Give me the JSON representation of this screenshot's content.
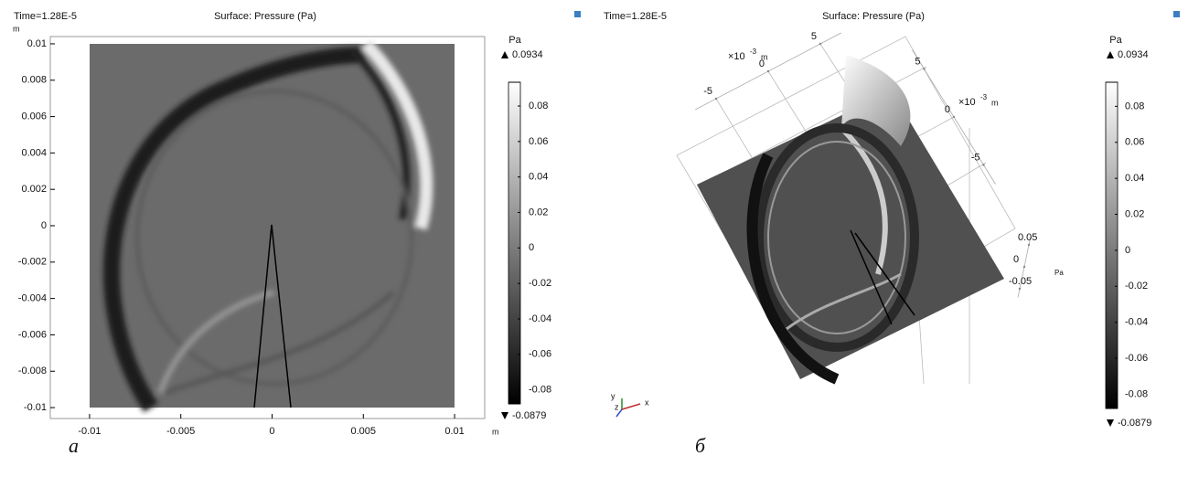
{
  "chart_data": [
    {
      "type": "surface",
      "time_label": "Time=1.28E-5",
      "title": "Surface: Pressure (Pa)",
      "xlabel": "m",
      "ylabel": "m",
      "xlim": [
        -0.01215,
        0.01165
      ],
      "ylim": [
        -0.0106,
        0.0104
      ],
      "xticks": [
        -0.01,
        -0.005,
        0,
        0.005,
        0.01
      ],
      "yticks": [
        0.01,
        0.008,
        0.006,
        0.004,
        0.002,
        0,
        -0.002,
        -0.004,
        -0.006,
        -0.008,
        -0.01
      ],
      "colorbar": {
        "unit": "Pa",
        "max": 0.0934,
        "min": -0.0879,
        "ticks": [
          0.08,
          0.06,
          0.04,
          0.02,
          0,
          -0.02,
          -0.04,
          -0.06,
          -0.08
        ]
      },
      "panel_label": "а"
    },
    {
      "type": "surface3d",
      "time_label": "Time=1.28E-5",
      "title": "Surface: Pressure (Pa)",
      "x_multiplier": "×10",
      "x_exponent": "-3",
      "x_unit": "m",
      "y_multiplier": "×10",
      "y_exponent": "-3",
      "y_unit": "m",
      "zlabel": "Pa",
      "xlim": [
        -7,
        7
      ],
      "ylim": [
        -7,
        7
      ],
      "zlim": [
        -0.07,
        0.07
      ],
      "xticks": [
        -5,
        0,
        5
      ],
      "yticks": [
        5,
        0,
        -5
      ],
      "zticks": [
        0.05,
        0,
        -0.05
      ],
      "triad": [
        "y",
        "z",
        "x"
      ],
      "colorbar": {
        "unit": "Pa",
        "max": 0.0934,
        "min": -0.0879,
        "ticks": [
          0.08,
          0.06,
          0.04,
          0.02,
          0,
          -0.02,
          -0.04,
          -0.06,
          -0.08
        ]
      },
      "panel_label": "б"
    }
  ]
}
